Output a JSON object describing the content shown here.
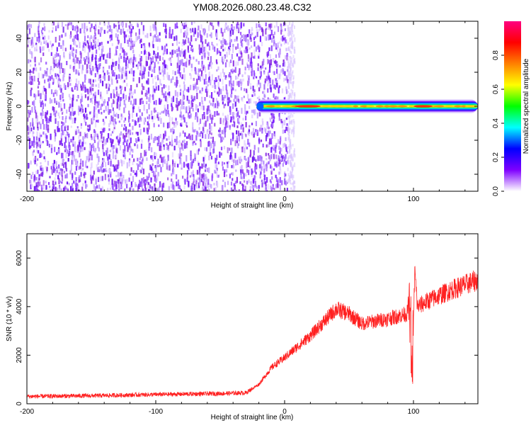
{
  "title": "YM08.2026.080.23.48.C32",
  "chart_data": [
    {
      "type": "heatmap",
      "xlabel": "Height of straight line (km)",
      "ylabel": "Frequency (Hz)",
      "xlim": [
        -200,
        150
      ],
      "ylim": [
        -50,
        50
      ],
      "x_ticks": [
        -200,
        -100,
        0,
        100
      ],
      "x_tick_labels": [
        "-200",
        "-100",
        "0",
        "100"
      ],
      "y_ticks": [
        40,
        20,
        0,
        -20,
        -40
      ],
      "y_tick_labels": [
        "40",
        "20",
        "0",
        "-20",
        "-40"
      ],
      "noise_region_x": [
        -200,
        2
      ],
      "signal_band": {
        "x_start": -22,
        "x_end": 150,
        "frequency": 0,
        "half_width_hz": 2.5
      },
      "peak_amplitude_regions": [
        {
          "x": [
            8,
            28
          ],
          "amplitude": 0.95
        },
        {
          "x": [
            100,
            115
          ],
          "amplitude": 0.95
        }
      ],
      "colorbar": {
        "label": "Normalized spectral amplitude",
        "range": [
          0.0,
          1.0
        ],
        "ticks": [
          0.0,
          0.2,
          0.4,
          0.6,
          0.8
        ],
        "tick_labels": [
          "0.0",
          "0.2",
          "0.4",
          "0.6",
          "0.8"
        ],
        "colors": [
          "#ffffff",
          "#7f00ff",
          "#0000ff",
          "#00ffff",
          "#00ff00",
          "#ffff00",
          "#ff8000",
          "#ff0000",
          "#ff0080"
        ]
      }
    },
    {
      "type": "line",
      "xlabel": "Height of straight line (km)",
      "ylabel": "SNR (10 * v/v)",
      "xlim": [
        -200,
        150
      ],
      "ylim": [
        0,
        7000
      ],
      "x_ticks": [
        -200,
        -100,
        0,
        100
      ],
      "x_tick_labels": [
        "-200",
        "-100",
        "0",
        "100"
      ],
      "y_ticks": [
        0,
        2000,
        4000,
        6000
      ],
      "y_tick_labels": [
        "0",
        "2000",
        "4000",
        "6000"
      ],
      "series": [
        {
          "color": "#ff2020",
          "x": [
            -200,
            -150,
            -100,
            -50,
            -30,
            -20,
            -10,
            0,
            20,
            40,
            50,
            60,
            80,
            95,
            97,
            99,
            101,
            103,
            110,
            130,
            150
          ],
          "y": [
            300,
            330,
            380,
            420,
            450,
            800,
            1500,
            1900,
            2800,
            3900,
            3700,
            3300,
            3500,
            3700,
            4500,
            1000,
            5500,
            4000,
            4200,
            4700,
            5100
          ]
        }
      ]
    }
  ]
}
